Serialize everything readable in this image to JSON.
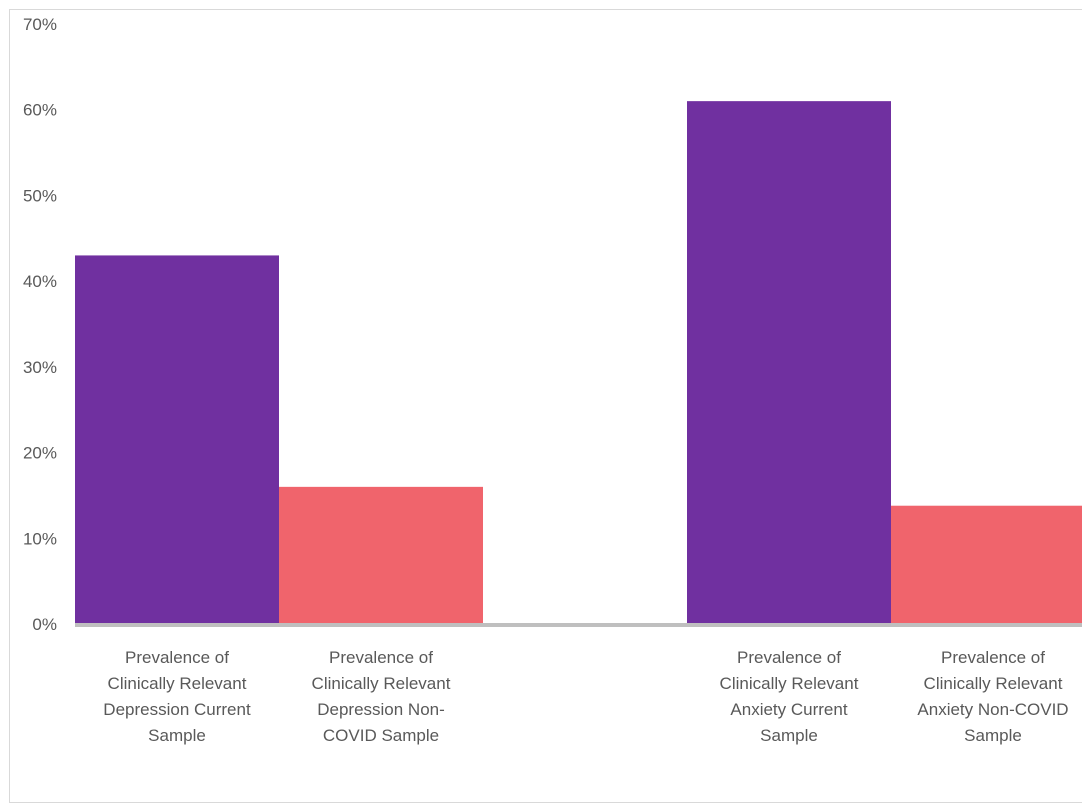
{
  "chart_data": {
    "type": "bar",
    "title": "",
    "xlabel": "",
    "ylabel": "",
    "ylim": [
      0,
      0.7
    ],
    "yticks": [
      "0%",
      "10%",
      "20%",
      "30%",
      "40%",
      "50%",
      "60%",
      "70%"
    ],
    "grid": false,
    "legend": "none",
    "categories": [
      [
        "Prevalence of",
        "Clinically Relevant",
        "Depression Current",
        "Sample"
      ],
      [
        "Prevalence of",
        "Clinically Relevant",
        "Depression Non-",
        "COVID Sample"
      ],
      [
        "Prevalence of",
        "Clinically Relevant",
        "Anxiety Current",
        "Sample"
      ],
      [
        "Prevalence of",
        "Clinically Relevant",
        "Anxiety Non-COVID",
        "Sample"
      ]
    ],
    "values": [
      0.43,
      0.16,
      0.61,
      0.138
    ],
    "colors": [
      "#7030a0",
      "#f0646c",
      "#7030a0",
      "#f0646c"
    ],
    "axis_color": "#bfbfbf"
  }
}
